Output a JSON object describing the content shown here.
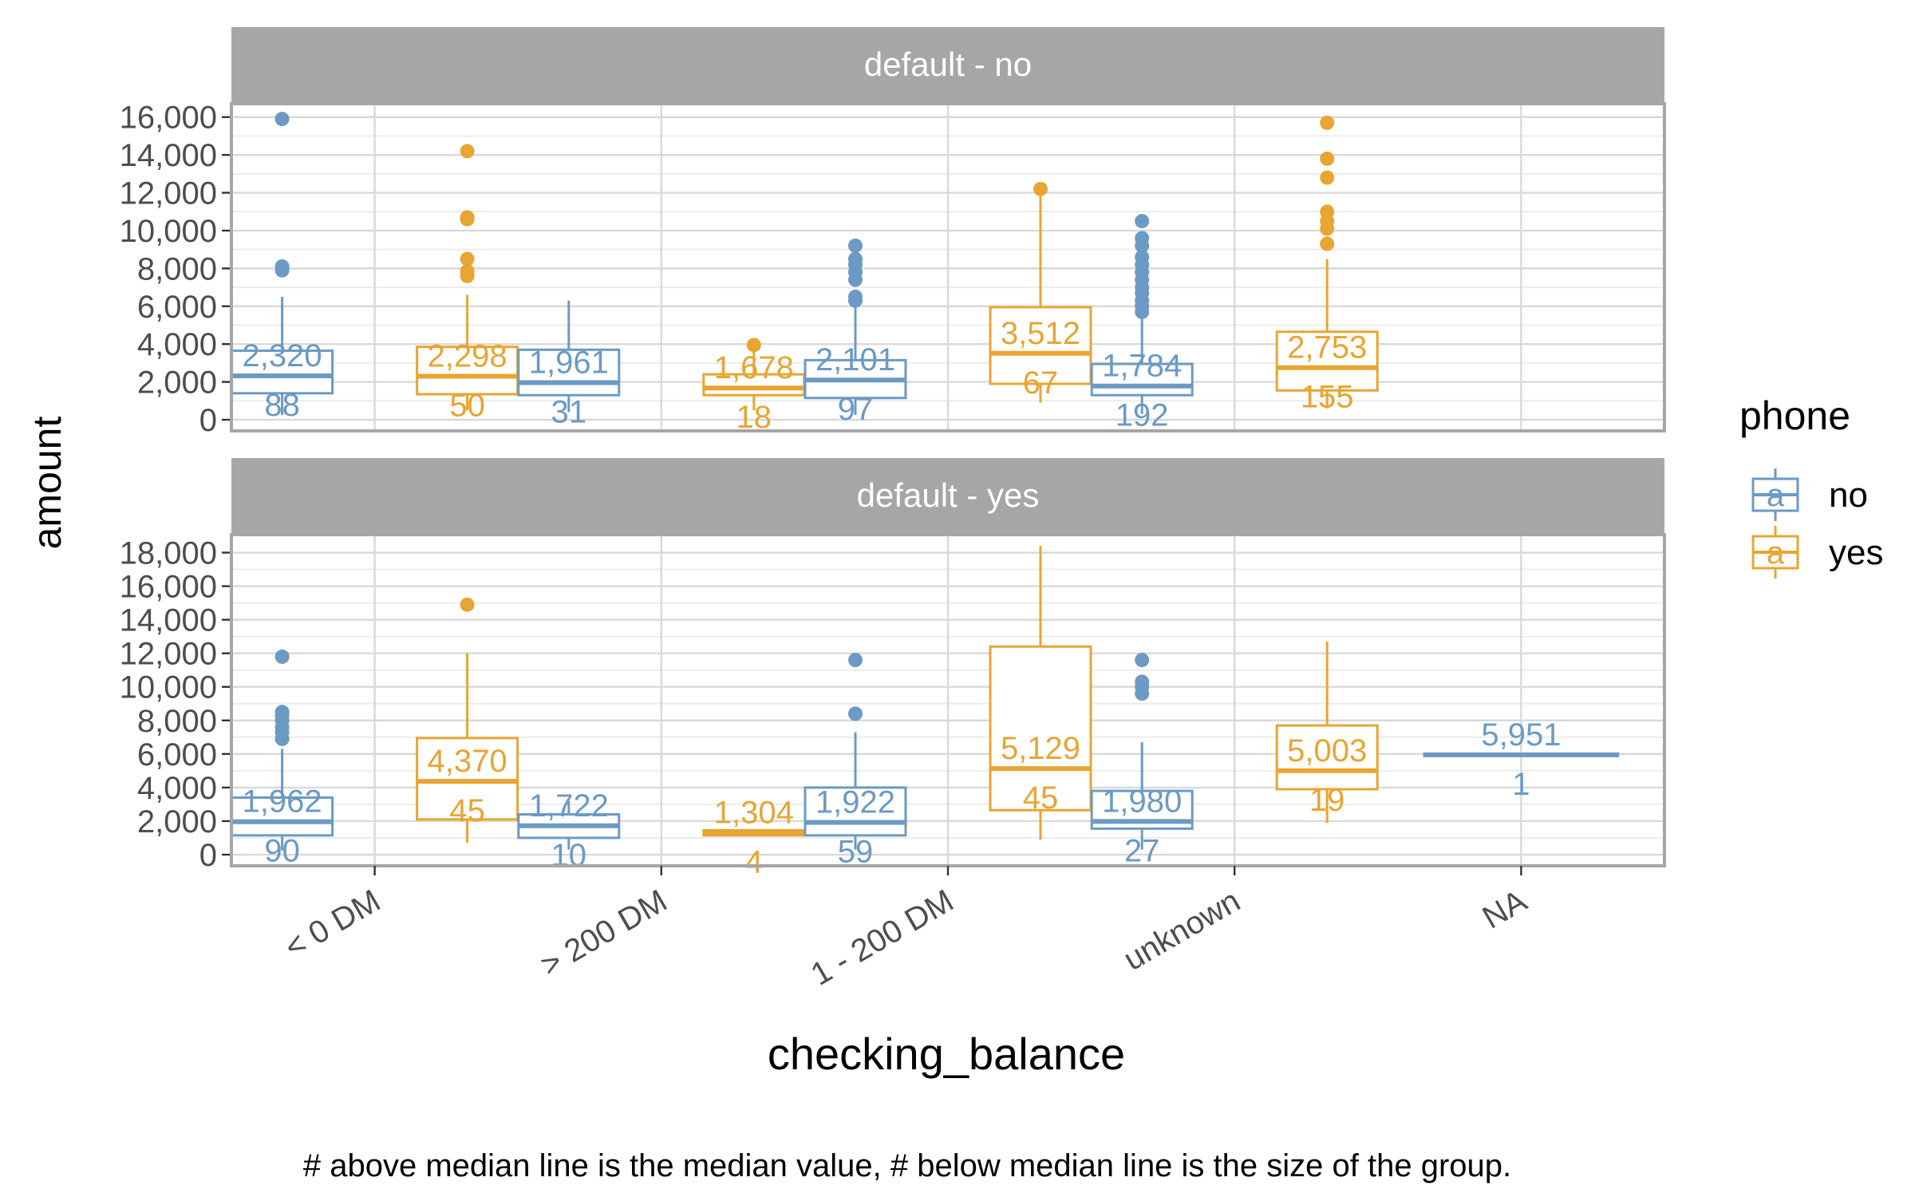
{
  "chart_data": {
    "type": "boxplot",
    "facet_variable": "default",
    "x_label": "checking_balance",
    "y_label": "amount",
    "caption": "# above median line is the median value, # below median line is the size of the group.",
    "categories": [
      "< 0 DM",
      "> 200 DM",
      "1 - 200 DM",
      "unknown",
      "NA"
    ],
    "legend": {
      "title": "phone",
      "position": "right",
      "glyph": "a",
      "entries": [
        {
          "label": "no",
          "color": "#6b9ac4"
        },
        {
          "label": "yes",
          "color": "#e8a532"
        }
      ]
    },
    "facets": [
      {
        "label": "default - no",
        "y_range": [
          0,
          16200
        ],
        "y_ticks": [
          0,
          2000,
          4000,
          6000,
          8000,
          10000,
          12000,
          14000,
          16000
        ],
        "y_tick_labels": [
          "0",
          "2,000",
          "4,000",
          "6,000",
          "8,000",
          "10,000",
          "12,000",
          "14,000",
          "16,000"
        ],
        "boxes": [
          {
            "category": "< 0 DM",
            "phone": "no",
            "q1": 1400,
            "median": 2320,
            "q3": 3650,
            "whisker_low": 250,
            "whisker_high": 6500,
            "outliers": [
              7900,
              8100,
              15900
            ],
            "median_label": "2,320",
            "n_label": "88"
          },
          {
            "category": "< 0 DM",
            "phone": "yes",
            "q1": 1350,
            "median": 2298,
            "q3": 3850,
            "whisker_low": 500,
            "whisker_high": 6600,
            "outliers": [
              7600,
              7850,
              8500,
              10600,
              10700,
              14200
            ],
            "median_label": "2,298",
            "n_label": "50"
          },
          {
            "category": "> 200 DM",
            "phone": "no",
            "q1": 1300,
            "median": 1961,
            "q3": 3700,
            "whisker_low": 400,
            "whisker_high": 6300,
            "outliers": [],
            "median_label": "1,961",
            "n_label": "31"
          },
          {
            "category": "> 200 DM",
            "phone": "yes",
            "q1": 1300,
            "median": 1678,
            "q3": 2400,
            "whisker_low": 500,
            "whisker_high": 3900,
            "outliers": [
              3950
            ],
            "median_label": "1,678",
            "n_label": "18"
          },
          {
            "category": "1 - 200 DM",
            "phone": "no",
            "q1": 1150,
            "median": 2101,
            "q3": 3150,
            "whisker_low": 250,
            "whisker_high": 6100,
            "outliers": [
              6300,
              6500,
              7400,
              7800,
              8200,
              8500,
              9200
            ],
            "median_label": "2,101",
            "n_label": "97"
          },
          {
            "category": "1 - 200 DM",
            "phone": "yes",
            "q1": 1900,
            "median": 3512,
            "q3": 5950,
            "whisker_low": 900,
            "whisker_high": 12200,
            "outliers": [
              12200
            ],
            "median_label": "3,512",
            "n_label": "67"
          },
          {
            "category": "unknown",
            "phone": "no",
            "q1": 1300,
            "median": 1784,
            "q3": 2950,
            "whisker_low": 300,
            "whisker_high": 5500,
            "outliers": [
              5700,
              6000,
              6300,
              6700,
              7000,
              7400,
              7800,
              8200,
              8600,
              9200,
              9600,
              10500
            ],
            "median_label": "1,784",
            "n_label": "192"
          },
          {
            "category": "unknown",
            "phone": "yes",
            "q1": 1550,
            "median": 2753,
            "q3": 4650,
            "whisker_low": 600,
            "whisker_high": 8500,
            "outliers": [
              9300,
              10100,
              10500,
              11000,
              12800,
              13800,
              15700
            ],
            "median_label": "2,753",
            "n_label": "155"
          }
        ]
      },
      {
        "label": "default - yes",
        "y_range": [
          0,
          18500
        ],
        "y_ticks": [
          0,
          2000,
          4000,
          6000,
          8000,
          10000,
          12000,
          14000,
          16000,
          18000
        ],
        "y_tick_labels": [
          "0",
          "2,000",
          "4,000",
          "6,000",
          "8,000",
          "10,000",
          "12,000",
          "14,000",
          "16,000",
          "18,000"
        ],
        "boxes": [
          {
            "category": "< 0 DM",
            "phone": "no",
            "q1": 1150,
            "median": 1962,
            "q3": 3400,
            "whisker_low": 250,
            "whisker_high": 6300,
            "outliers": [
              6900,
              7300,
              7600,
              8000,
              8300,
              8500,
              11800
            ],
            "median_label": "1,962",
            "n_label": "90"
          },
          {
            "category": "< 0 DM",
            "phone": "yes",
            "q1": 2100,
            "median": 4370,
            "q3": 6950,
            "whisker_low": 700,
            "whisker_high": 12000,
            "outliers": [
              14900
            ],
            "median_label": "4,370",
            "n_label": "45"
          },
          {
            "category": "> 200 DM",
            "phone": "no",
            "q1": 1000,
            "median": 1722,
            "q3": 2400,
            "whisker_low": 300,
            "whisker_high": 3200,
            "outliers": [],
            "median_label": "1,722",
            "n_label": "10"
          },
          {
            "category": "> 200 DM",
            "phone": "yes",
            "q1": 1150,
            "median": 1304,
            "q3": 1450,
            "whisker_low": 1100,
            "whisker_high": 1500,
            "outliers": [],
            "median_label": "1,304",
            "n_label": "4"
          },
          {
            "category": "1 - 200 DM",
            "phone": "no",
            "q1": 1150,
            "median": 1922,
            "q3": 4000,
            "whisker_low": 300,
            "whisker_high": 7300,
            "outliers": [
              8400,
              11600
            ],
            "median_label": "1,922",
            "n_label": "59"
          },
          {
            "category": "1 - 200 DM",
            "phone": "yes",
            "q1": 2650,
            "median": 5129,
            "q3": 12400,
            "whisker_low": 900,
            "whisker_high": 18400,
            "outliers": [],
            "median_label": "5,129",
            "n_label": "45"
          },
          {
            "category": "unknown",
            "phone": "no",
            "q1": 1550,
            "median": 1980,
            "q3": 3800,
            "whisker_low": 300,
            "whisker_high": 6700,
            "outliers": [
              9600,
              10000,
              10300,
              11600
            ],
            "median_label": "1,980",
            "n_label": "27"
          },
          {
            "category": "unknown",
            "phone": "yes",
            "q1": 3900,
            "median": 5003,
            "q3": 7700,
            "whisker_low": 1900,
            "whisker_high": 12700,
            "outliers": [],
            "median_label": "5,003",
            "n_label": "19"
          },
          {
            "category": "NA",
            "phone": "no",
            "q1": 5951,
            "median": 5951,
            "q3": 5951,
            "whisker_low": 5951,
            "whisker_high": 5951,
            "outliers": [],
            "median_label": "5,951",
            "n_label": "1",
            "full_width": true
          }
        ]
      }
    ]
  }
}
